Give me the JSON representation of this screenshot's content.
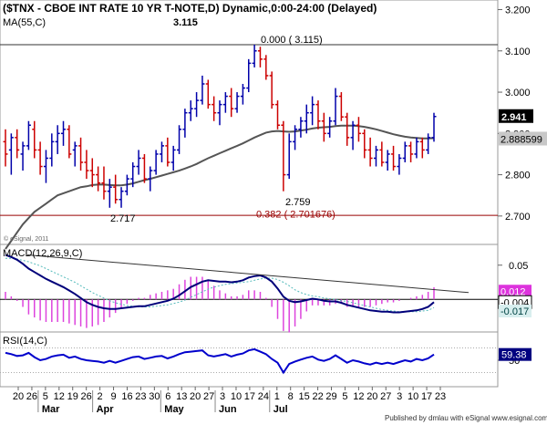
{
  "chart_data": {
    "type": "bar",
    "title": "($TNX - CBOE INT RATE 10 YR T-NOTE,D) Dynamic,0:00-24:00 (Delayed)",
    "main_panel": {
      "indicator_label": "MA(55,C)",
      "y_ticks": [
        "3.200",
        "3.100",
        "3.000",
        "2.900",
        "2.800",
        "2.700"
      ],
      "ylim": [
        2.64,
        3.21
      ],
      "last_price": "2.941",
      "ma_value": "2.888599",
      "hlines": [
        3.115,
        2.701676
      ],
      "annotations": [
        {
          "text": "3.115",
          "x": "Apr 26",
          "y": 3.17
        },
        {
          "text": "0.000 ( 3.115)",
          "x": "May 22",
          "y": 3.128
        },
        {
          "text": "2.759",
          "x": "May 31",
          "y": 2.735
        },
        {
          "text": "0.382 ( 2.701676)",
          "x": "Jun 1",
          "y": 2.705
        },
        {
          "text": "2.717",
          "x": "Apr 3",
          "y": 2.695
        }
      ],
      "watermark": "© eSignal, 2011",
      "ohlc": [
        [
          2.88,
          2.91,
          2.82,
          2.85
        ],
        [
          2.86,
          2.9,
          2.8,
          2.89
        ],
        [
          2.89,
          2.91,
          2.84,
          2.86
        ],
        [
          2.85,
          2.88,
          2.81,
          2.87
        ],
        [
          2.87,
          2.93,
          2.86,
          2.92
        ],
        [
          2.91,
          2.93,
          2.84,
          2.86
        ],
        [
          2.86,
          2.88,
          2.8,
          2.82
        ],
        [
          2.82,
          2.86,
          2.78,
          2.84
        ],
        [
          2.84,
          2.9,
          2.82,
          2.88
        ],
        [
          2.88,
          2.92,
          2.85,
          2.9
        ],
        [
          2.9,
          2.93,
          2.87,
          2.91
        ],
        [
          2.91,
          2.92,
          2.84,
          2.85
        ],
        [
          2.86,
          2.88,
          2.82,
          2.87
        ],
        [
          2.87,
          2.89,
          2.81,
          2.83
        ],
        [
          2.83,
          2.86,
          2.79,
          2.81
        ],
        [
          2.81,
          2.84,
          2.77,
          2.8
        ],
        [
          2.8,
          2.82,
          2.76,
          2.78
        ],
        [
          2.78,
          2.82,
          2.74,
          2.76
        ],
        [
          2.76,
          2.79,
          2.72,
          2.77
        ],
        [
          2.77,
          2.8,
          2.73,
          2.74
        ],
        [
          2.74,
          2.77,
          2.72,
          2.76
        ],
        [
          2.76,
          2.8,
          2.75,
          2.79
        ],
        [
          2.79,
          2.83,
          2.77,
          2.82
        ],
        [
          2.82,
          2.86,
          2.8,
          2.84
        ],
        [
          2.84,
          2.85,
          2.78,
          2.79
        ],
        [
          2.79,
          2.82,
          2.76,
          2.81
        ],
        [
          2.81,
          2.86,
          2.8,
          2.85
        ],
        [
          2.85,
          2.88,
          2.83,
          2.87
        ],
        [
          2.87,
          2.89,
          2.82,
          2.83
        ],
        [
          2.83,
          2.87,
          2.81,
          2.86
        ],
        [
          2.86,
          2.92,
          2.85,
          2.91
        ],
        [
          2.91,
          2.96,
          2.89,
          2.95
        ],
        [
          2.95,
          2.98,
          2.93,
          2.96
        ],
        [
          2.96,
          3.0,
          2.94,
          2.98
        ],
        [
          2.98,
          3.04,
          2.97,
          3.02
        ],
        [
          3.02,
          3.03,
          2.96,
          2.97
        ],
        [
          2.97,
          2.99,
          2.93,
          2.95
        ],
        [
          2.95,
          2.98,
          2.92,
          2.97
        ],
        [
          2.97,
          3.0,
          2.95,
          2.99
        ],
        [
          2.99,
          3.01,
          2.94,
          2.96
        ],
        [
          2.96,
          3.0,
          2.95,
          2.99
        ],
        [
          2.99,
          3.02,
          2.97,
          3.01
        ],
        [
          3.01,
          3.08,
          3.0,
          3.07
        ],
        [
          3.07,
          3.115,
          3.06,
          3.1
        ],
        [
          3.1,
          3.11,
          3.06,
          3.08
        ],
        [
          3.08,
          3.09,
          3.03,
          3.04
        ],
        [
          3.04,
          3.05,
          2.96,
          2.97
        ],
        [
          2.97,
          2.98,
          2.91,
          2.92
        ],
        [
          2.92,
          2.93,
          2.76,
          2.8
        ],
        [
          2.8,
          2.9,
          2.79,
          2.88
        ],
        [
          2.88,
          2.92,
          2.86,
          2.91
        ],
        [
          2.91,
          2.94,
          2.89,
          2.93
        ],
        [
          2.93,
          2.97,
          2.9,
          2.95
        ],
        [
          2.95,
          2.99,
          2.92,
          2.97
        ],
        [
          2.97,
          2.98,
          2.91,
          2.93
        ],
        [
          2.93,
          2.95,
          2.88,
          2.9
        ],
        [
          2.9,
          2.94,
          2.89,
          2.93
        ],
        [
          2.93,
          3.01,
          2.92,
          2.99
        ],
        [
          2.99,
          3.0,
          2.93,
          2.94
        ],
        [
          2.94,
          2.95,
          2.87,
          2.89
        ],
        [
          2.89,
          2.93,
          2.86,
          2.92
        ],
        [
          2.92,
          2.94,
          2.88,
          2.9
        ],
        [
          2.9,
          2.91,
          2.84,
          2.86
        ],
        [
          2.86,
          2.89,
          2.82,
          2.84
        ],
        [
          2.84,
          2.87,
          2.82,
          2.86
        ],
        [
          2.86,
          2.88,
          2.82,
          2.83
        ],
        [
          2.83,
          2.86,
          2.81,
          2.85
        ],
        [
          2.85,
          2.87,
          2.81,
          2.82
        ],
        [
          2.82,
          2.85,
          2.8,
          2.84
        ],
        [
          2.84,
          2.88,
          2.83,
          2.87
        ],
        [
          2.87,
          2.88,
          2.83,
          2.85
        ],
        [
          2.85,
          2.89,
          2.84,
          2.88
        ],
        [
          2.88,
          2.89,
          2.84,
          2.86
        ],
        [
          2.86,
          2.9,
          2.85,
          2.89
        ],
        [
          2.89,
          2.95,
          2.88,
          2.941
        ]
      ],
      "ma": [
        2.62,
        2.64,
        2.66,
        2.68,
        2.695,
        2.71,
        2.72,
        2.73,
        2.74,
        2.75,
        2.755,
        2.76,
        2.765,
        2.77,
        2.772,
        2.775,
        2.776,
        2.776,
        2.775,
        2.774,
        2.774,
        2.776,
        2.779,
        2.783,
        2.787,
        2.79,
        2.794,
        2.798,
        2.802,
        2.806,
        2.81,
        2.815,
        2.82,
        2.826,
        2.833,
        2.84,
        2.846,
        2.852,
        2.858,
        2.864,
        2.87,
        2.876,
        2.883,
        2.89,
        2.896,
        2.902,
        2.905,
        2.906,
        2.905,
        2.904,
        2.905,
        2.907,
        2.909,
        2.912,
        2.914,
        2.915,
        2.916,
        2.918,
        2.919,
        2.919,
        2.919,
        2.918,
        2.916,
        2.913,
        2.91,
        2.906,
        2.902,
        2.898,
        2.895,
        2.892,
        2.89,
        2.889,
        2.888,
        2.888,
        2.888599
      ]
    },
    "macd_panel": {
      "label": "MACD(12,26,9,C)",
      "y_ticks": [
        "0.05"
      ],
      "ylim": [
        -0.045,
        0.075
      ],
      "values": [
        "0.012",
        "-0.004",
        "-0.017"
      ],
      "trendline": [
        0.065,
        0.01
      ],
      "macd": [
        0.065,
        0.062,
        0.058,
        0.052,
        0.045,
        0.04,
        0.035,
        0.03,
        0.026,
        0.022,
        0.018,
        0.013,
        0.008,
        0.002,
        -0.004,
        -0.008,
        -0.011,
        -0.013,
        -0.014,
        -0.014,
        -0.013,
        -0.012,
        -0.011,
        -0.01,
        -0.01,
        -0.008,
        -0.006,
        -0.004,
        -0.002,
        0.001,
        0.006,
        0.012,
        0.018,
        0.022,
        0.026,
        0.028,
        0.027,
        0.026,
        0.026,
        0.025,
        0.026,
        0.028,
        0.032,
        0.034,
        0.035,
        0.032,
        0.026,
        0.016,
        0.004,
        -0.002,
        -0.004,
        -0.003,
        -0.001,
        0.001,
        0.0,
        -0.002,
        -0.003,
        -0.003,
        -0.005,
        -0.008,
        -0.01,
        -0.012,
        -0.014,
        -0.016,
        -0.017,
        -0.018,
        -0.018,
        -0.019,
        -0.019,
        -0.018,
        -0.017,
        -0.016,
        -0.014,
        -0.011,
        -0.004
      ],
      "signal": [
        0.06,
        0.06,
        0.059,
        0.057,
        0.055,
        0.052,
        0.049,
        0.045,
        0.041,
        0.037,
        0.033,
        0.029,
        0.025,
        0.02,
        0.015,
        0.01,
        0.006,
        0.002,
        -0.002,
        -0.005,
        -0.007,
        -0.009,
        -0.01,
        -0.011,
        -0.011,
        -0.011,
        -0.01,
        -0.009,
        -0.008,
        -0.006,
        -0.004,
        -0.001,
        0.003,
        0.007,
        0.011,
        0.015,
        0.018,
        0.02,
        0.022,
        0.023,
        0.024,
        0.025,
        0.026,
        0.028,
        0.03,
        0.031,
        0.031,
        0.029,
        0.025,
        0.02,
        0.014,
        0.01,
        0.007,
        0.005,
        0.004,
        0.002,
        0.001,
        0.0,
        -0.002,
        -0.003,
        -0.005,
        -0.007,
        -0.009,
        -0.011,
        -0.013,
        -0.015,
        -0.016,
        -0.017,
        -0.018,
        -0.018,
        -0.018,
        -0.018,
        -0.017,
        -0.016,
        -0.012
      ]
    },
    "rsi_panel": {
      "label": "RSI(14,C)",
      "y_ticks": [
        "50"
      ],
      "ylim": [
        10,
        90
      ],
      "value": "59.38",
      "levels": [
        70,
        30
      ],
      "rsi": [
        62,
        60,
        57,
        58,
        62,
        55,
        50,
        52,
        56,
        58,
        59,
        54,
        56,
        52,
        50,
        49,
        48,
        46,
        49,
        46,
        49,
        52,
        55,
        56,
        52,
        54,
        56,
        57,
        53,
        56,
        60,
        63,
        64,
        65,
        66,
        58,
        56,
        58,
        60,
        56,
        59,
        61,
        66,
        68,
        64,
        60,
        52,
        46,
        30,
        44,
        48,
        51,
        54,
        56,
        51,
        49,
        52,
        58,
        52,
        46,
        50,
        48,
        45,
        43,
        46,
        44,
        46,
        44,
        47,
        50,
        48,
        52,
        50,
        53,
        59.38
      ]
    },
    "x_axis": {
      "ticks": [
        "20",
        "26",
        "5",
        "12",
        "19",
        "26",
        "2",
        "9",
        "16",
        "23",
        "30",
        "6",
        "13",
        "20",
        "27",
        "3",
        "10",
        "17",
        "24",
        "1",
        "8",
        "15",
        "22",
        "29",
        "5",
        "12",
        "20",
        "27",
        "3",
        "10",
        "17",
        "23"
      ],
      "months": [
        "Mar",
        "Apr",
        "May",
        "Jun",
        "Jul"
      ]
    },
    "colors": {
      "up": "#0000aa",
      "down": "#cc0000",
      "ma": "#555555",
      "macd": "#00007a",
      "signal": "#55bbbb",
      "hist": "#dd44dd",
      "rsi": "#0000cc",
      "trend": "#333333",
      "fib": "#990000"
    }
  },
  "footer": "Published by dmlau with eSignal www.esignal.com"
}
